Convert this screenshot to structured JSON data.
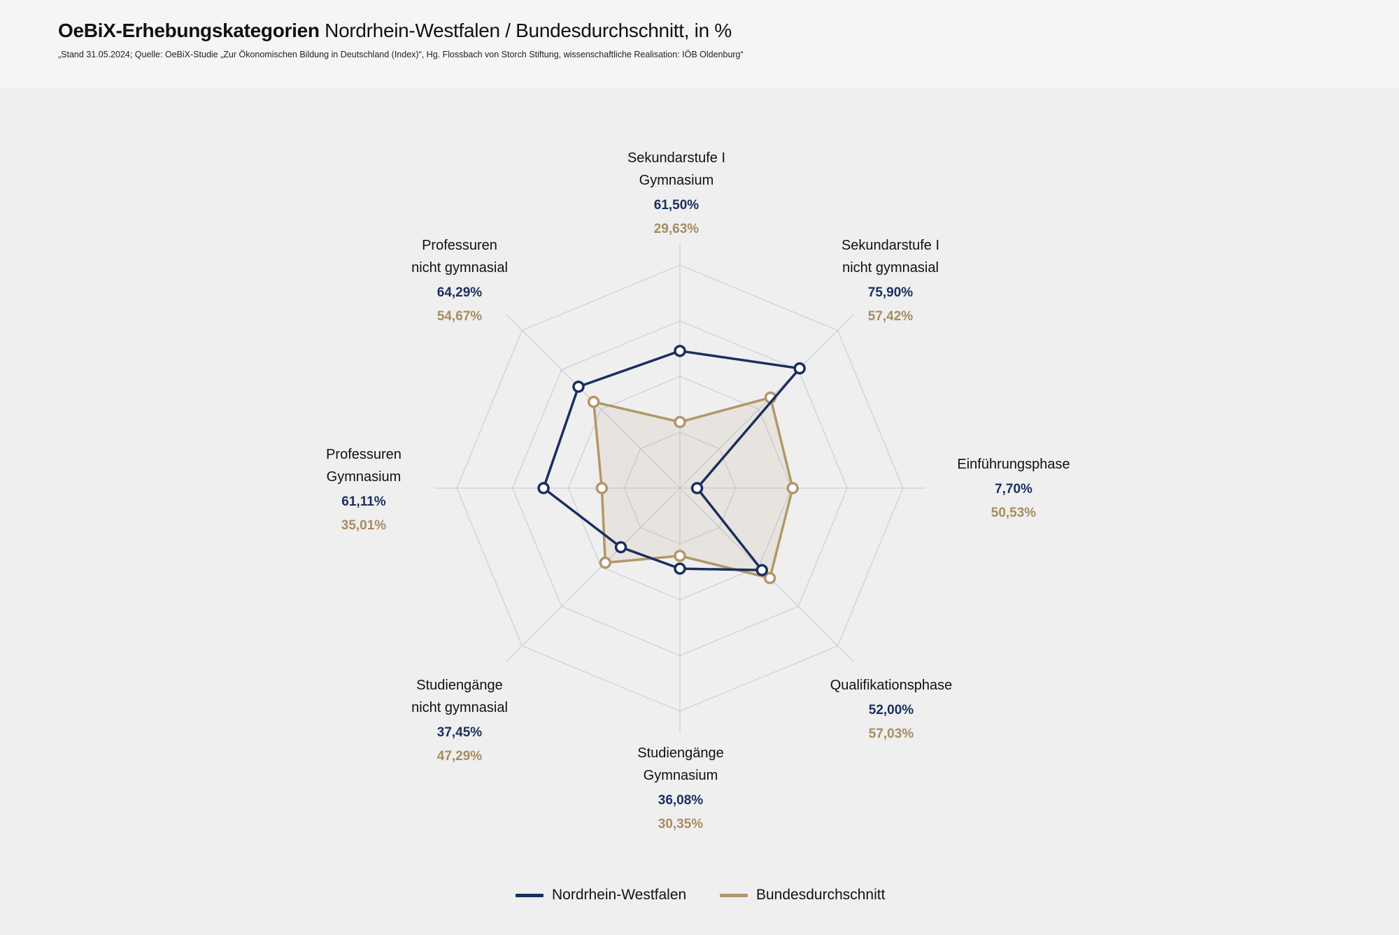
{
  "header": {
    "title_bold": "OeBiX-Erhebungskategorien",
    "title_rest": " Nordrhein-Westfalen / Bundesdurchschnitt, in %",
    "subtitle": "„Stand 31.05.2024; Quelle: OeBiX-Studie „Zur Ökonomischen Bildung in Deutschland (Index)“, Hg. Flossbach von Storch Stiftung, wissenschaftliche Realisation: IÖB Oldenburg“"
  },
  "chart_data": {
    "type": "radar",
    "title": "OeBiX-Erhebungskategorien Nordrhein-Westfalen / Bundesdurchschnitt, in %",
    "range": [
      0,
      100
    ],
    "rings": 4,
    "categories": [
      {
        "line1": "Sekundarstufe I",
        "line2": "Gymnasium"
      },
      {
        "line1": "Sekundarstufe I",
        "line2": "nicht gymnasial"
      },
      {
        "line1": "Einführungsphase",
        "line2": ""
      },
      {
        "line1": "Qualifikationsphase",
        "line2": ""
      },
      {
        "line1": "Studiengänge",
        "line2": "Gymnasium"
      },
      {
        "line1": "Studiengänge",
        "line2": "nicht gymnasial"
      },
      {
        "line1": "Professuren",
        "line2": "Gymnasium"
      },
      {
        "line1": "Professuren",
        "line2": "nicht gymnasial"
      }
    ],
    "series": [
      {
        "name": "Nordrhein-Westfalen",
        "color": "#1b2f5e",
        "values": [
          61.5,
          75.9,
          7.7,
          52.0,
          36.08,
          37.45,
          61.11,
          64.29
        ],
        "labels": [
          "61,50%",
          "75,90%",
          "7,70%",
          "52,00%",
          "36,08%",
          "37,45%",
          "61,11%",
          "64,29%"
        ]
      },
      {
        "name": "Bundesdurchschnitt",
        "color": "#b3966a",
        "values": [
          29.63,
          57.42,
          50.53,
          57.03,
          30.35,
          47.29,
          35.01,
          54.67
        ],
        "labels": [
          "29,63%",
          "57,42%",
          "50,53%",
          "57,03%",
          "30,35%",
          "47,29%",
          "35,01%",
          "54,67%"
        ]
      }
    ],
    "legend_position": "bottom-center"
  }
}
